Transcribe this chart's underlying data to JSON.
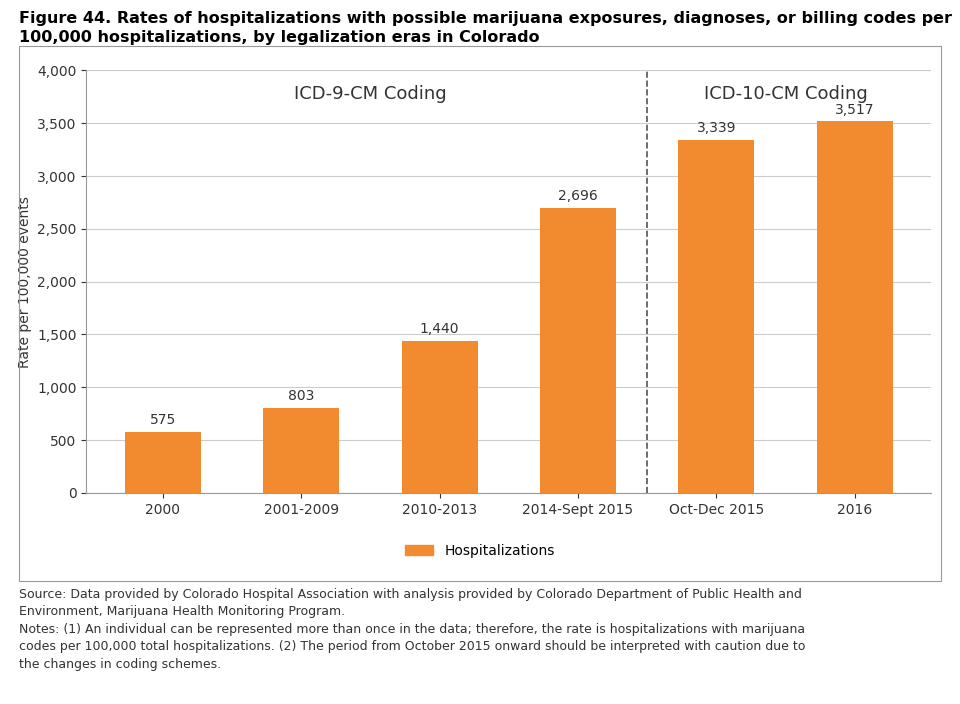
{
  "title_line1": "Figure 44. Rates of hospitalizations with possible marijuana exposures, diagnoses, or billing codes per",
  "title_line2": "100,000 hospitalizations, by legalization eras in Colorado",
  "categories": [
    "2000",
    "2001-2009",
    "2010-2013",
    "2014-Sept 2015",
    "Oct-Dec 2015",
    "2016"
  ],
  "values": [
    575,
    803,
    1440,
    2696,
    3339,
    3517
  ],
  "bar_color": "#F28B30",
  "ylabel": "Rate per 100,000 events",
  "ylim": [
    0,
    4000
  ],
  "yticks": [
    0,
    500,
    1000,
    1500,
    2000,
    2500,
    3000,
    3500,
    4000
  ],
  "icd9_label": "ICD-9-CM Coding",
  "icd10_label": "ICD-10-CM Coding",
  "legend_label": "Hospitalizations",
  "source_line1": "Source: Data provided by Colorado Hospital Association with analysis provided by Colorado Department of Public Health and",
  "source_line2": "Environment, Marijuana Health Monitoring Program.",
  "source_line3": "Notes: (1) An individual can be represented more than once in the data; therefore, the rate is hospitalizations with marijuana",
  "source_line4": "codes per 100,000 total hospitalizations. (2) The period from October 2015 onward should be interpreted with caution due to",
  "source_line5": "the changes in coding schemes.",
  "background_color": "#ffffff",
  "grid_color": "#cccccc",
  "border_color": "#999999",
  "title_fontsize": 11.5,
  "axis_label_fontsize": 10,
  "tick_fontsize": 10,
  "annotation_fontsize": 10,
  "source_fontsize": 9,
  "icd_label_fontsize": 13
}
